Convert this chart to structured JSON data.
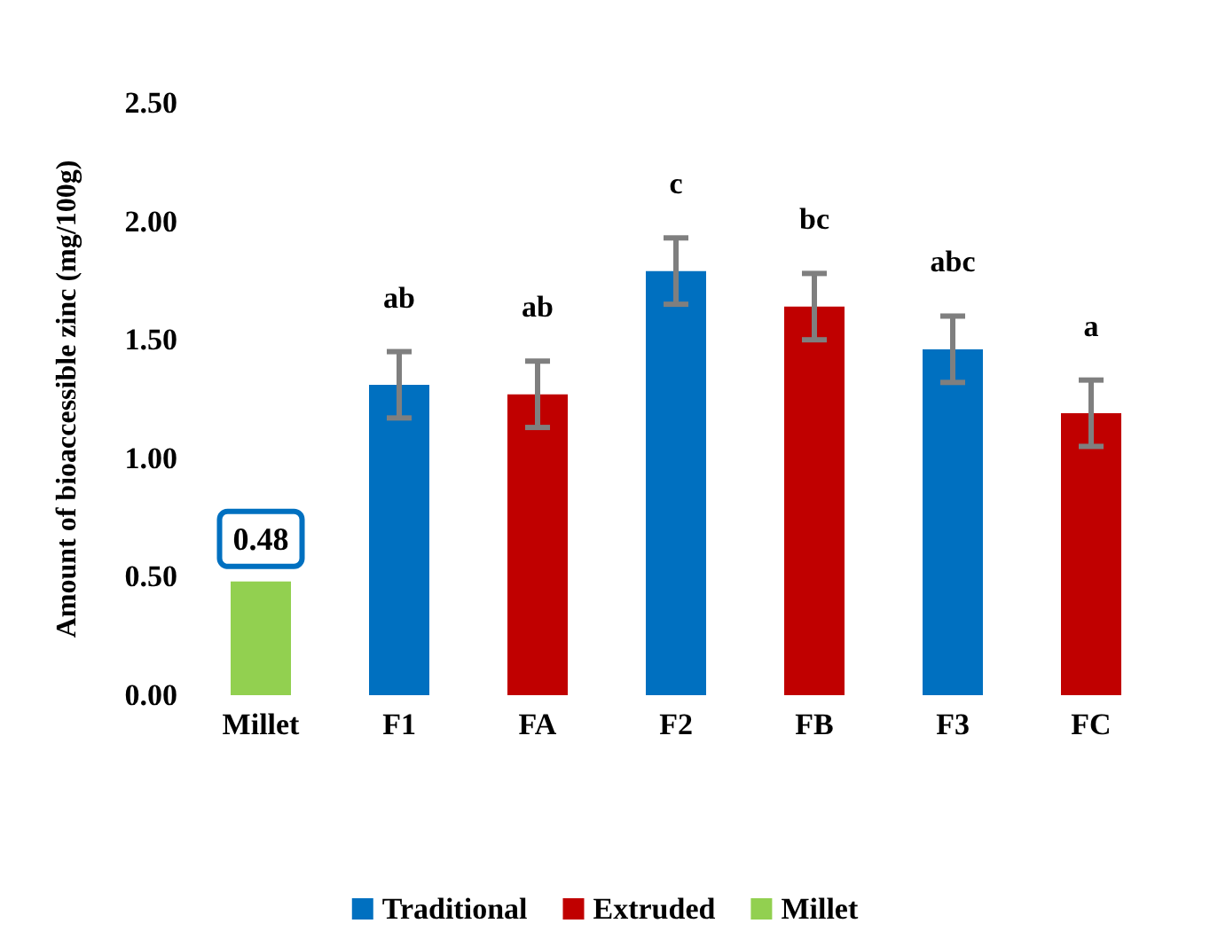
{
  "chart_data": {
    "type": "bar",
    "ylabel": "Amount of bioaccessible zinc (mg/100g)",
    "categories": [
      "Millet",
      "F1",
      "FA",
      "F2",
      "FB",
      "F3",
      "FC"
    ],
    "series": [
      {
        "name": "Traditional",
        "color": "#0070c0",
        "values": [
          null,
          1.31,
          null,
          1.79,
          null,
          1.46,
          null
        ],
        "errors": [
          null,
          0.14,
          null,
          0.14,
          null,
          0.14,
          null
        ]
      },
      {
        "name": "Extruded",
        "color": "#c00000",
        "values": [
          null,
          null,
          1.27,
          null,
          1.64,
          null,
          1.19
        ],
        "errors": [
          null,
          null,
          0.14,
          null,
          0.14,
          null,
          0.14
        ]
      },
      {
        "name": "Millet",
        "color": "#92d050",
        "values": [
          0.48,
          null,
          null,
          null,
          null,
          null,
          null
        ],
        "value_labels": [
          "0.48",
          null,
          null,
          null,
          null,
          null,
          null
        ]
      }
    ],
    "ylim": [
      0,
      2.5
    ],
    "yticks": [
      {
        "value": 0,
        "label": "0.00"
      },
      {
        "value": 0.5,
        "label": "0.50"
      },
      {
        "value": 1,
        "label": "1.00"
      },
      {
        "value": 1.5,
        "label": "1.50"
      },
      {
        "value": 2,
        "label": "2.00"
      },
      {
        "value": 2.5,
        "label": "2.50"
      }
    ],
    "annotations": [
      "ab",
      "ab",
      "c",
      "bc",
      "abc",
      "a"
    ],
    "legend": "bottom",
    "grid": false
  }
}
